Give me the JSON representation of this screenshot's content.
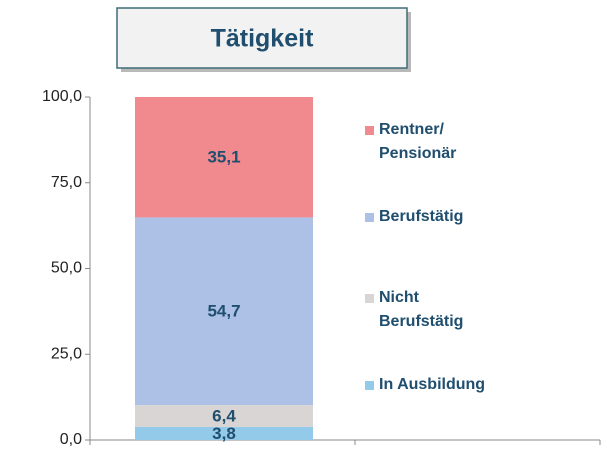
{
  "chart_data": {
    "type": "stacked-bar",
    "title": "Tätigkeit",
    "categories": [
      null
    ],
    "series": [
      {
        "name": "In Ausbildung",
        "color": "#93c9e9",
        "values": [
          3.8
        ],
        "value_labels": [
          "3,8"
        ]
      },
      {
        "name": "Nicht Berufstätig",
        "color": "#d9d5d5",
        "values": [
          6.4
        ],
        "value_labels": [
          "6,4"
        ]
      },
      {
        "name": "Berufstätig",
        "color": "#adc0e6",
        "values": [
          54.7
        ],
        "value_labels": [
          "54,7"
        ]
      },
      {
        "name": "Rentner/ Pensionär",
        "color": "#f08a8e",
        "values": [
          35.1
        ],
        "value_labels": [
          "35,1"
        ]
      }
    ],
    "ylim": [
      0,
      100
    ],
    "yticks": [
      {
        "value": 0,
        "label": "0,0"
      },
      {
        "value": 25,
        "label": "25,0"
      },
      {
        "value": 50,
        "label": "50,0"
      },
      {
        "value": 75,
        "label": "75,0"
      },
      {
        "value": 100,
        "label": "100,0"
      }
    ],
    "legend": "right"
  }
}
